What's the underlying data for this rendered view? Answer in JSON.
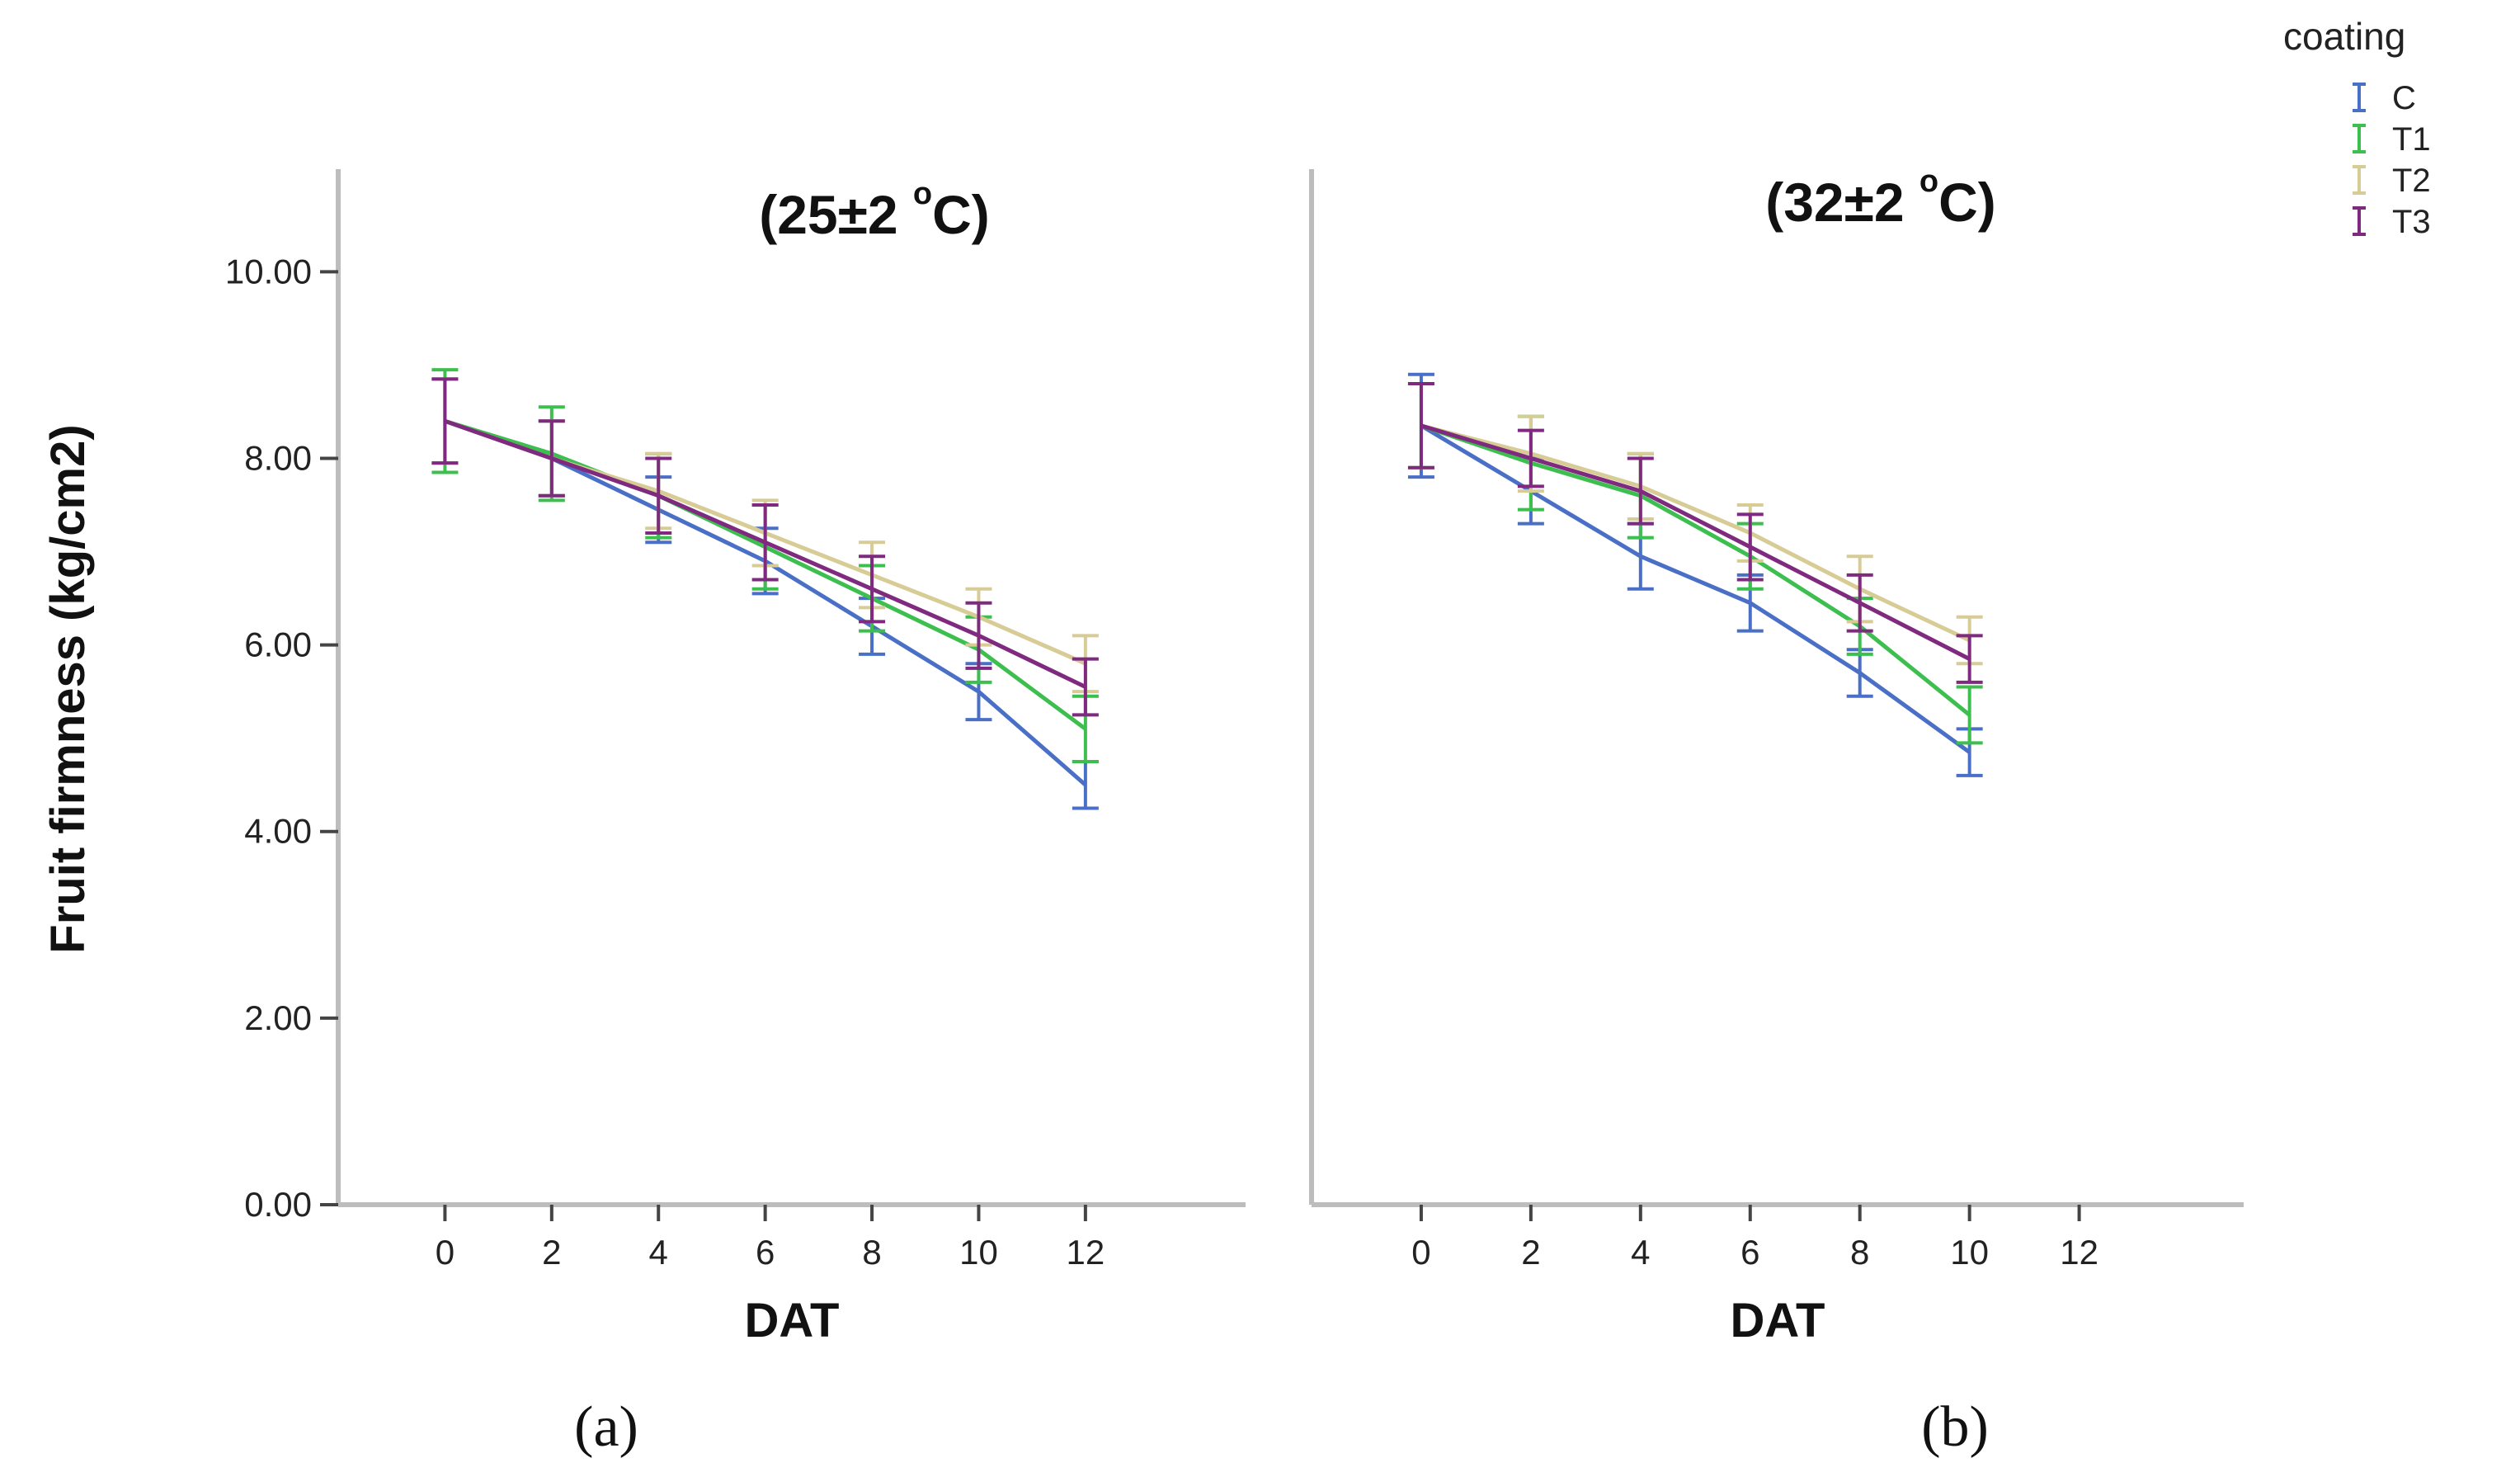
{
  "colors": {
    "C": "#4a6fc6",
    "T1": "#3cbf4e",
    "T2": "#d8cc96",
    "T3": "#7f2a7f",
    "axis": "#bdbdbd",
    "tick": "#444444"
  },
  "chart_data": [
    {
      "type": "line",
      "title": "(25±2 °C)",
      "title_parts": {
        "before": "(25±2 ",
        "sup": "o",
        "after": "C)"
      },
      "caption": "(a)",
      "xlabel": "DAT",
      "ylabel": "Fruit firmness (kg/cm2)",
      "x_ticks": [
        "0",
        "2",
        "4",
        "6",
        "8",
        "10",
        "12"
      ],
      "y_ticks": [
        "0.00",
        "2.00",
        "4.00",
        "6.00",
        "8.00",
        "10.00"
      ],
      "xlim": [
        -2,
        15
      ],
      "ylim": [
        0,
        11.1
      ],
      "error_bars": true,
      "grid": false,
      "series": [
        {
          "name": "C",
          "x": [
            0,
            2,
            4,
            6,
            8,
            10,
            12
          ],
          "y": [
            8.4,
            8.0,
            7.45,
            6.9,
            6.2,
            5.5,
            4.5
          ],
          "err": [
            0.45,
            0.4,
            0.35,
            0.35,
            0.3,
            0.3,
            0.25
          ]
        },
        {
          "name": "T1",
          "x": [
            0,
            2,
            4,
            6,
            8,
            10,
            12
          ],
          "y": [
            8.4,
            8.05,
            7.6,
            7.05,
            6.5,
            5.95,
            5.1
          ],
          "err": [
            0.55,
            0.5,
            0.45,
            0.45,
            0.35,
            0.35,
            0.35
          ]
        },
        {
          "name": "T2",
          "x": [
            0,
            2,
            4,
            6,
            8,
            10,
            12
          ],
          "y": [
            8.4,
            8.0,
            7.65,
            7.2,
            6.75,
            6.3,
            5.8
          ],
          "err": [
            0.45,
            0.4,
            0.4,
            0.35,
            0.35,
            0.3,
            0.3
          ]
        },
        {
          "name": "T3",
          "x": [
            0,
            2,
            4,
            6,
            8,
            10,
            12
          ],
          "y": [
            8.4,
            8.0,
            7.6,
            7.1,
            6.6,
            6.1,
            5.55
          ],
          "err": [
            0.45,
            0.4,
            0.4,
            0.4,
            0.35,
            0.35,
            0.3
          ]
        }
      ]
    },
    {
      "type": "line",
      "title": "(32±2 °C)",
      "title_parts": {
        "before": "(32±2 ",
        "sup": "o",
        "after": "C)"
      },
      "caption": "(b)",
      "xlabel": "DAT",
      "x_ticks": [
        "0",
        "2",
        "4",
        "6",
        "8",
        "10",
        "12"
      ],
      "xlim": [
        -2,
        15
      ],
      "ylim": [
        0,
        11.1
      ],
      "error_bars": true,
      "grid": false,
      "series": [
        {
          "name": "C",
          "x": [
            0,
            2,
            4,
            6,
            8,
            10
          ],
          "y": [
            8.35,
            7.65,
            6.95,
            6.45,
            5.7,
            4.85
          ],
          "err": [
            0.55,
            0.35,
            0.35,
            0.3,
            0.25,
            0.25
          ]
        },
        {
          "name": "T1",
          "x": [
            0,
            2,
            4,
            6,
            8,
            10
          ],
          "y": [
            8.35,
            7.95,
            7.6,
            6.95,
            6.2,
            5.25
          ],
          "err": [
            0.45,
            0.5,
            0.45,
            0.35,
            0.3,
            0.3
          ]
        },
        {
          "name": "T2",
          "x": [
            0,
            2,
            4,
            6,
            8,
            10
          ],
          "y": [
            8.35,
            8.05,
            7.7,
            7.2,
            6.6,
            6.05
          ],
          "err": [
            0.45,
            0.4,
            0.35,
            0.3,
            0.35,
            0.25
          ]
        },
        {
          "name": "T3",
          "x": [
            0,
            2,
            4,
            6,
            8,
            10
          ],
          "y": [
            8.35,
            8.0,
            7.65,
            7.05,
            6.45,
            5.85
          ],
          "err": [
            0.45,
            0.3,
            0.35,
            0.35,
            0.3,
            0.25
          ]
        }
      ]
    }
  ],
  "legend": {
    "title": "coating",
    "placement": "top-right",
    "items": [
      {
        "label": "C",
        "key": "C"
      },
      {
        "label": "T1",
        "key": "T1"
      },
      {
        "label": "T2",
        "key": "T2"
      },
      {
        "label": "T3",
        "key": "T3"
      }
    ]
  }
}
